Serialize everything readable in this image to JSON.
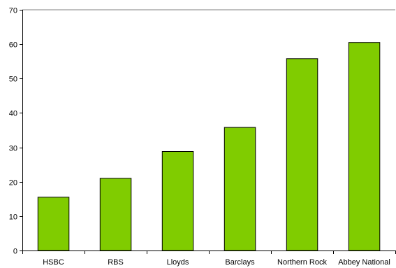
{
  "chart_data": {
    "type": "bar",
    "categories": [
      "HSBC",
      "RBS",
      "Lloyds",
      "Barclays",
      "Northern Rock",
      "Abbey National"
    ],
    "values": [
      15.5,
      21,
      28.8,
      35.8,
      55.8,
      60.5
    ],
    "ylim": [
      0,
      70
    ],
    "yticks": [
      0,
      10,
      20,
      30,
      40,
      50,
      60,
      70
    ],
    "grid": {
      "horizontal": "top border only"
    },
    "legend": "none",
    "colors": {
      "bar_fill": "#80cc00",
      "bar_stroke": "#000000",
      "axis": "#000000",
      "frame_top": "#808080"
    }
  }
}
